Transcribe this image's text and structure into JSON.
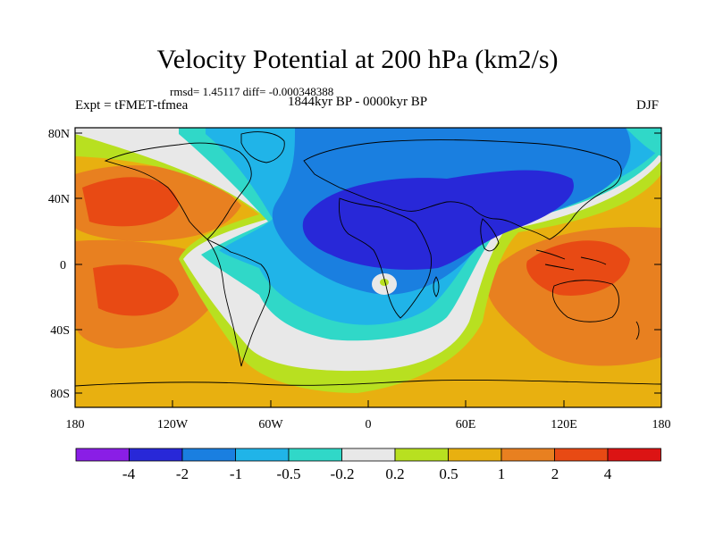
{
  "title": "Velocity Potential at 200 hPa (km2/s)",
  "stats": "rmsd= 1.45117 diff= -0.000348388",
  "experiment": "Expt = tFMET-tfmea",
  "period": "1844kyr BP - 0000kyr BP",
  "season": "DJF",
  "map": {
    "lat_ticks": [
      "80N",
      "40N",
      "0",
      "40S",
      "80S"
    ],
    "lon_ticks": [
      "180",
      "120W",
      "60W",
      "0",
      "60E",
      "120E",
      "180"
    ]
  },
  "colorbar": {
    "labels": [
      "-4",
      "-2",
      "-1",
      "-0.5",
      "-0.2",
      "0.2",
      "0.5",
      "1",
      "2",
      "4"
    ],
    "colors": [
      "#8a1ee6",
      "#2828d8",
      "#1a7fe0",
      "#20b4e8",
      "#30d8c8",
      "#e8e8e8",
      "#b8e020",
      "#e8b010",
      "#e88020",
      "#e84a14",
      "#dc1414"
    ]
  }
}
